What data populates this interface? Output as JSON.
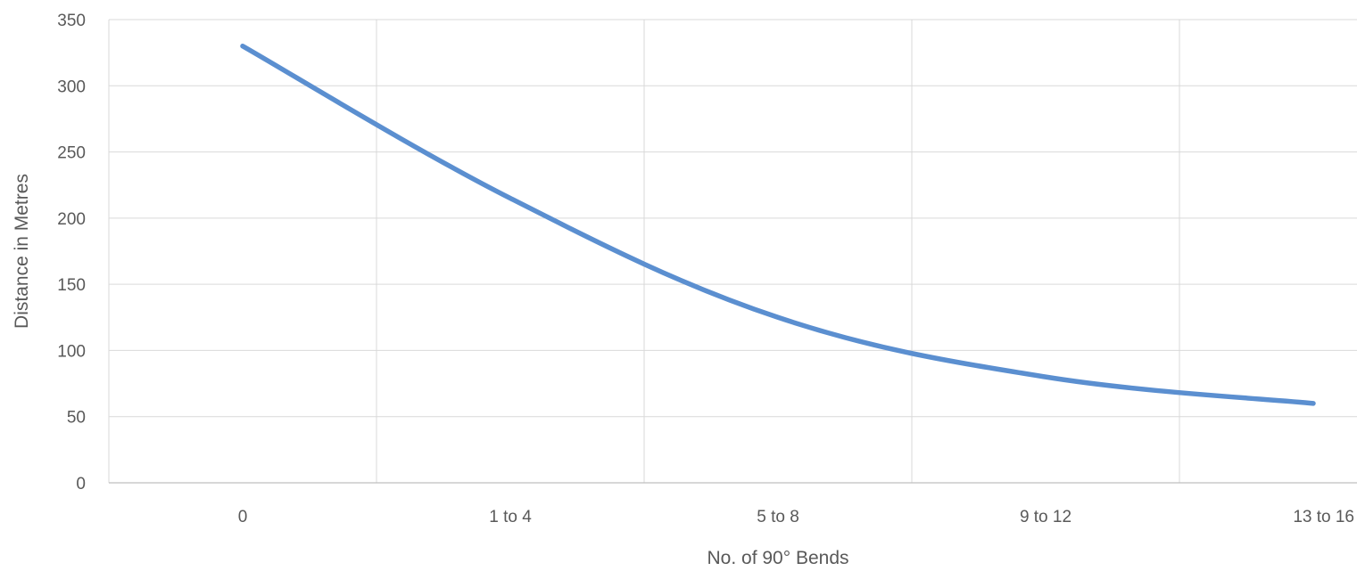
{
  "chart_data": {
    "type": "line",
    "title": "",
    "xlabel": "No. of 90° Bends",
    "ylabel": "Distance in Metres",
    "categories": [
      "0",
      "1 to 4",
      "5 to 8",
      "9 to 12",
      "13 to 16"
    ],
    "series": [
      {
        "values": [
          330,
          215,
          125,
          80,
          60
        ],
        "color": "#5b8fd0"
      }
    ],
    "ylim": [
      0,
      350
    ],
    "yticks": [
      "0",
      "50",
      "100",
      "150",
      "200",
      "250",
      "300",
      "350"
    ],
    "grid": true,
    "legend": "none"
  }
}
